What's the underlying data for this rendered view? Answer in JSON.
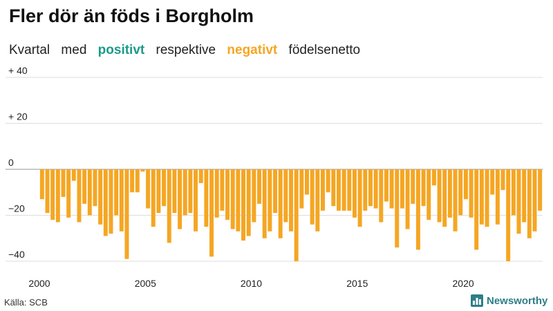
{
  "title": "Fler dör än föds i Borgholm",
  "subtitle": {
    "part1": "Kvartal",
    "part2": "med",
    "positive": "positivt",
    "part3": "respektive",
    "negative": "negativt",
    "part4": "födelsenetto"
  },
  "colors": {
    "positive": "#1a9a8a",
    "negative": "#f5a623",
    "grid": "#dddddd",
    "zero": "#aaaaaa"
  },
  "source": "Källa: SCB",
  "brand": {
    "name": "Newsworthy",
    "logo_icon": "bar-chart-icon"
  },
  "chart_data": {
    "type": "bar",
    "title": "Fler dör än föds i Borgholm",
    "xlabel": "",
    "ylabel": "",
    "ylim": [
      -42,
      42
    ],
    "y_ticks": [
      {
        "value": 40,
        "label": "+ 40"
      },
      {
        "value": 20,
        "label": "+ 20"
      },
      {
        "value": 0,
        "label": "0"
      },
      {
        "value": -20,
        "label": "−20"
      },
      {
        "value": -40,
        "label": "−40"
      }
    ],
    "x_ticks": [
      "2000",
      "2005",
      "2010",
      "2015",
      "2020"
    ],
    "start": "2000 Q1",
    "values": [
      -13,
      -19,
      -22,
      -23,
      -12,
      -21,
      -5,
      -23,
      -15,
      -20,
      -16,
      -24,
      -29,
      -28,
      -20,
      -27,
      -39,
      -10,
      -10,
      -1,
      -17,
      -25,
      -19,
      -16,
      -32,
      -19,
      -26,
      -20,
      -19,
      -27,
      -6,
      -25,
      -38,
      -21,
      -18,
      -22,
      -26,
      -27,
      -31,
      -29,
      -23,
      -15,
      -30,
      -27,
      -19,
      -30,
      -23,
      -27,
      -40,
      -17,
      -11,
      -24,
      -27,
      -18,
      -10,
      -16,
      -18,
      -18,
      -18,
      -21,
      -25,
      -18,
      -16,
      -17,
      -23,
      -14,
      -17,
      -34,
      -17,
      -26,
      -15,
      -35,
      -16,
      -22,
      -7,
      -23,
      -25,
      -21,
      -27,
      -20,
      -13,
      -21,
      -35,
      -24,
      -25,
      -11,
      -24,
      -9,
      -40,
      -20,
      -28,
      -23,
      -30,
      -27,
      -18
    ]
  }
}
